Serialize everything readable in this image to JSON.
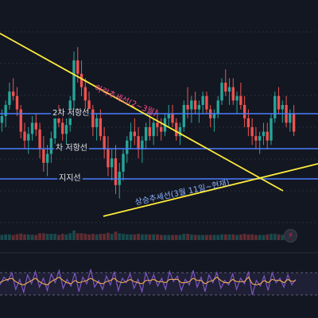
{
  "chart_data": [
    {
      "type": "candlestick",
      "title": "",
      "xlabel": "",
      "ylabel": "",
      "ylim": [
        0,
        100
      ],
      "grid": "horizontal dotted",
      "candles": [
        [
          52,
          58,
          48,
          55
        ],
        [
          55,
          62,
          50,
          60
        ],
        [
          60,
          70,
          58,
          66
        ],
        [
          66,
          72,
          62,
          64
        ],
        [
          64,
          68,
          55,
          58
        ],
        [
          58,
          60,
          45,
          48
        ],
        [
          48,
          52,
          40,
          44
        ],
        [
          44,
          50,
          38,
          47
        ],
        [
          47,
          55,
          44,
          52
        ],
        [
          52,
          56,
          46,
          49
        ],
        [
          49,
          52,
          36,
          40
        ],
        [
          40,
          46,
          30,
          34
        ],
        [
          34,
          42,
          28,
          38
        ],
        [
          38,
          48,
          34,
          45
        ],
        [
          45,
          56,
          42,
          54
        ],
        [
          54,
          60,
          50,
          52
        ],
        [
          52,
          58,
          44,
          47
        ],
        [
          47,
          54,
          42,
          51
        ],
        [
          51,
          64,
          48,
          62
        ],
        [
          62,
          84,
          58,
          80
        ],
        [
          80,
          86,
          70,
          74
        ],
        [
          74,
          80,
          64,
          68
        ],
        [
          68,
          72,
          58,
          62
        ],
        [
          62,
          66,
          54,
          58
        ],
        [
          58,
          60,
          46,
          50
        ],
        [
          50,
          56,
          44,
          54
        ],
        [
          54,
          58,
          44,
          46
        ],
        [
          46,
          50,
          36,
          40
        ],
        [
          40,
          46,
          28,
          32
        ],
        [
          32,
          40,
          26,
          36
        ],
        [
          36,
          42,
          20,
          24
        ],
        [
          24,
          34,
          18,
          30
        ],
        [
          30,
          40,
          26,
          38
        ],
        [
          38,
          46,
          34,
          44
        ],
        [
          44,
          52,
          40,
          48
        ],
        [
          48,
          54,
          42,
          46
        ],
        [
          46,
          50,
          36,
          40
        ],
        [
          40,
          46,
          34,
          44
        ],
        [
          44,
          52,
          40,
          50
        ],
        [
          50,
          56,
          44,
          46
        ],
        [
          46,
          54,
          42,
          52
        ],
        [
          52,
          58,
          46,
          50
        ],
        [
          50,
          54,
          44,
          48
        ],
        [
          48,
          56,
          46,
          54
        ],
        [
          54,
          60,
          50,
          56
        ],
        [
          56,
          60,
          50,
          52
        ],
        [
          52,
          54,
          44,
          46
        ],
        [
          46,
          52,
          42,
          50
        ],
        [
          50,
          62,
          48,
          60
        ],
        [
          60,
          68,
          54,
          58
        ],
        [
          58,
          64,
          52,
          62
        ],
        [
          62,
          66,
          56,
          58
        ],
        [
          58,
          62,
          52,
          60
        ],
        [
          60,
          66,
          56,
          64
        ],
        [
          64,
          66,
          56,
          58
        ],
        [
          58,
          60,
          50,
          54
        ],
        [
          54,
          58,
          48,
          56
        ],
        [
          56,
          64,
          54,
          62
        ],
        [
          62,
          72,
          60,
          70
        ],
        [
          70,
          76,
          64,
          66
        ],
        [
          66,
          72,
          60,
          68
        ],
        [
          68,
          72,
          60,
          62
        ],
        [
          62,
          66,
          56,
          64
        ],
        [
          64,
          70,
          58,
          60
        ],
        [
          60,
          64,
          50,
          54
        ],
        [
          54,
          58,
          46,
          50
        ],
        [
          50,
          54,
          42,
          46
        ],
        [
          46,
          50,
          40,
          44
        ],
        [
          44,
          48,
          38,
          46
        ],
        [
          46,
          52,
          42,
          48
        ],
        [
          48,
          52,
          40,
          44
        ],
        [
          44,
          56,
          42,
          54
        ],
        [
          54,
          66,
          52,
          64
        ],
        [
          64,
          68,
          56,
          58
        ],
        [
          58,
          62,
          52,
          60
        ],
        [
          60,
          64,
          50,
          52
        ],
        [
          52,
          58,
          48,
          56
        ],
        [
          56,
          60,
          46,
          48
        ]
      ]
    },
    {
      "type": "line",
      "title": "",
      "ylim": [
        0,
        100
      ],
      "series": [
        {
          "values": [
            48,
            62,
            55,
            70,
            40,
            58,
            35,
            66,
            50,
            72,
            44,
            60,
            38,
            68,
            52,
            74,
            42,
            58,
            46,
            70,
            36,
            62,
            50,
            76,
            44,
            56,
            40,
            64,
            48,
            72,
            38,
            60,
            52,
            68,
            42,
            58,
            36,
            70,
            50,
            66,
            46,
            60,
            40,
            72,
            54,
            64,
            38,
            58,
            48,
            74,
            44,
            62,
            36,
            66,
            52,
            70,
            42,
            56,
            48,
            68,
            40,
            60,
            50,
            72,
            30,
            56,
            46,
            64,
            38,
            70,
            52,
            60,
            44,
            66,
            48,
            58
          ]
        },
        {
          "values": [
            52,
            56,
            58,
            60,
            54,
            50,
            48,
            52,
            56,
            60,
            54,
            50,
            48,
            54,
            58,
            62,
            56,
            52,
            50,
            56,
            52,
            54,
            56,
            60,
            56,
            52,
            50,
            54,
            56,
            60,
            54,
            52,
            54,
            58,
            54,
            52,
            50,
            56,
            56,
            58,
            54,
            54,
            52,
            58,
            58,
            58,
            52,
            52,
            54,
            60,
            56,
            56,
            50,
            54,
            56,
            62,
            56,
            52,
            52,
            58,
            54,
            54,
            54,
            62,
            50,
            48,
            50,
            56,
            52,
            58,
            56,
            56,
            52,
            58,
            54,
            56
          ]
        }
      ],
      "band": [
        30,
        70
      ]
    }
  ],
  "annotations": {
    "resistance_2": "2차 저항선",
    "resistance_1": "차 저항선",
    "support": "지지선",
    "downtrend": "하락추세선(2~3월)",
    "uptrend": "상승추세선(3월 11일~현재)"
  },
  "colors": {
    "bg": "#131722",
    "up": "#26a69a",
    "down": "#ef5350",
    "level_line": "#4a7dff",
    "trend_line": "#ffeb3b",
    "osc_main": "#7e57c2",
    "osc_signal": "#ffb74d"
  },
  "icons": {
    "alert": "lightning-icon"
  }
}
